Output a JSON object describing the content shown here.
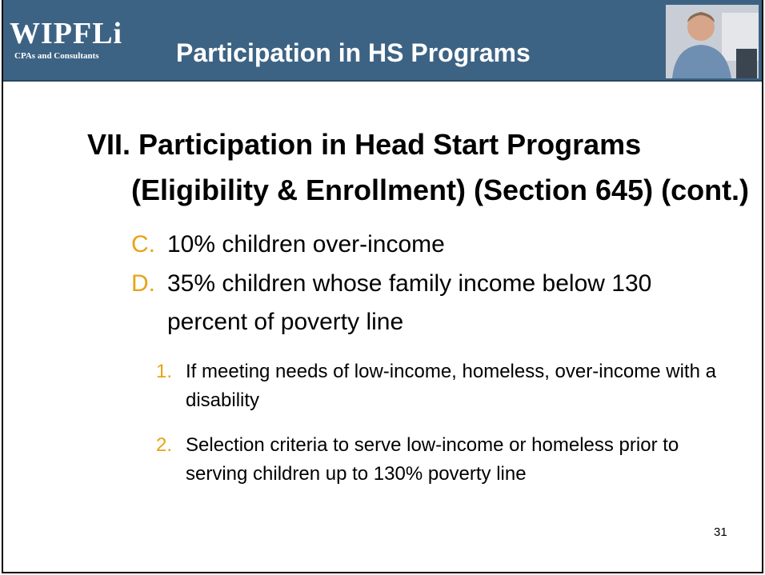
{
  "header": {
    "logo": "WIPFLi",
    "logo_tagline": "CPAs and Consultants",
    "title": "Participation in HS Programs"
  },
  "heading": {
    "number": "VII.",
    "text": "Participation in Head Start Programs (Eligibility & Enrollment) (Section 645) (cont.)"
  },
  "items": [
    {
      "marker": "C.",
      "text": "10% children over-income"
    },
    {
      "marker": "D.",
      "text": "35% children whose family income below 130 percent of poverty line",
      "subitems": [
        {
          "marker": "1.",
          "text": "If meeting needs of low-income, homeless, over-income with a disability"
        },
        {
          "marker": "2.",
          "text": "Selection criteria to serve low-income or homeless prior to serving children up to 130% poverty line"
        }
      ]
    }
  ],
  "page_number": "31"
}
